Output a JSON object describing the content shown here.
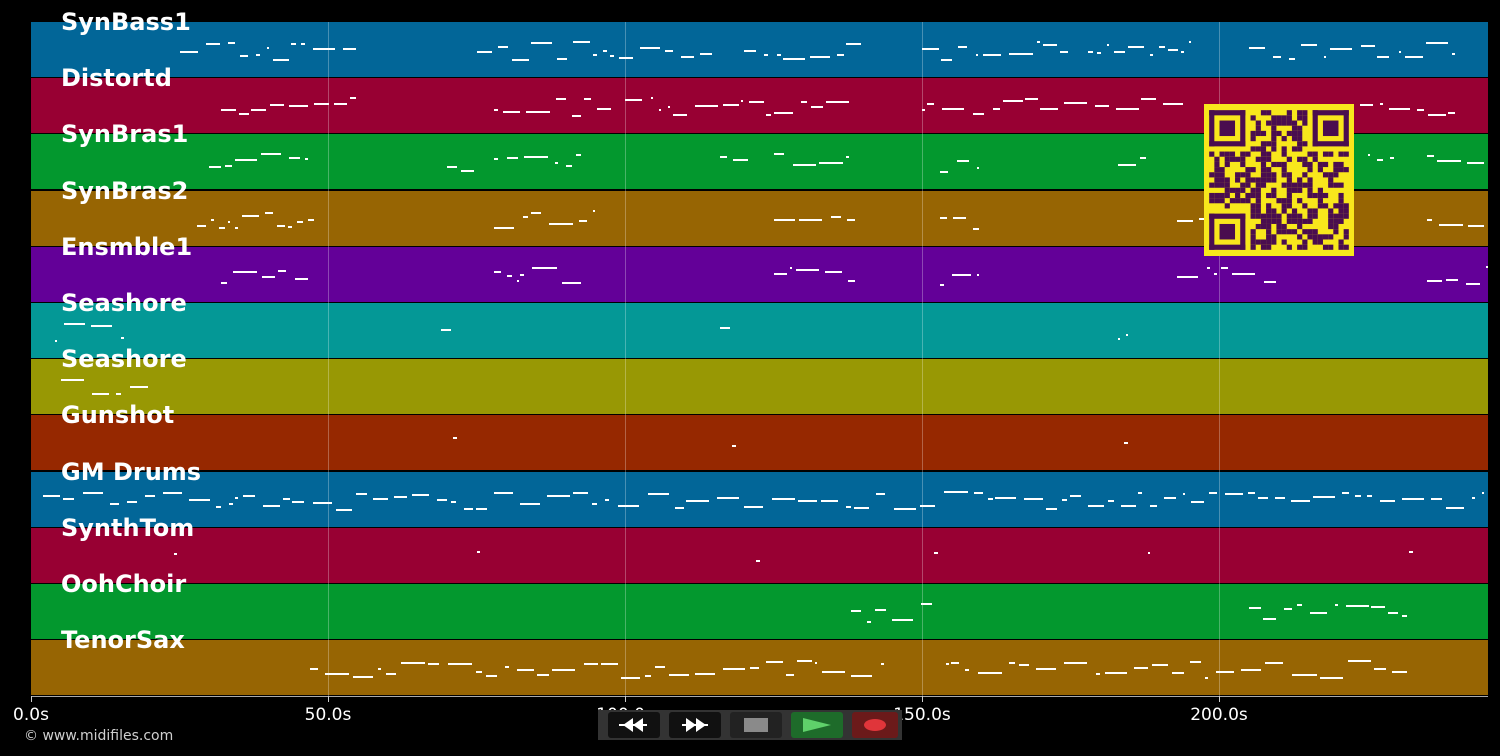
{
  "tracks": [
    {
      "label": "SynBass1",
      "color": "#026698"
    },
    {
      "label": "Distortd",
      "color": "#980033"
    },
    {
      "label": "SynBras1",
      "color": "#03982E"
    },
    {
      "label": "SynBras2",
      "color": "#976503"
    },
    {
      "label": "Ensmble1",
      "color": "#630098"
    },
    {
      "label": "Seashore",
      "color": "#049896"
    },
    {
      "label": "Seashore",
      "color": "#989804"
    },
    {
      "label": "Gunshot",
      "color": "#962800"
    },
    {
      "label": "GM Drums",
      "color": "#026698"
    },
    {
      "label": "SynthTom",
      "color": "#980033"
    },
    {
      "label": "OohChoir",
      "color": "#03982E"
    },
    {
      "label": "TenorSax",
      "color": "#976503"
    }
  ],
  "timeline": {
    "ticks": [
      {
        "seconds": 0,
        "label": "0.0s"
      },
      {
        "seconds": 50,
        "label": "50.0s"
      },
      {
        "seconds": 100,
        "label": "100.0s"
      },
      {
        "seconds": 150,
        "label": "150.0s"
      },
      {
        "seconds": 200,
        "label": "200.0s"
      }
    ],
    "duration_seconds": 245
  },
  "copyright": "© www.midifiles.com",
  "controls": {
    "rewind": {
      "icon": "rewind-icon"
    },
    "fast_forward": {
      "icon": "fast-forward-icon"
    },
    "stop": {
      "icon": "stop-icon"
    },
    "play": {
      "icon": "play-icon",
      "color": "#1e6b2a"
    },
    "record": {
      "icon": "record-icon",
      "color": "#6b1a1a"
    }
  },
  "qr_code": {
    "color": "#f8e71c",
    "module_color": "#4a0d4f"
  }
}
